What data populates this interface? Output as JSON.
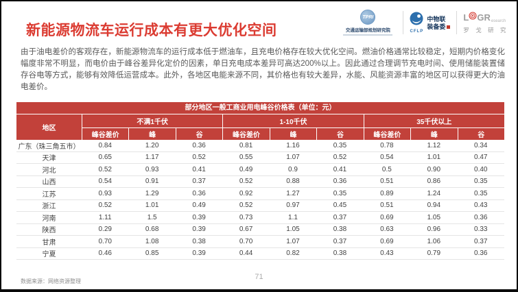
{
  "slide": {
    "title": "新能源物流车运行成本有更大优化空间",
    "body_text": "由于油电差价的客观存在，新能源物流车的运行成本低于燃油车，且充电价格存在较大优化空间。燃油价格通常比较稳定，短期内价格变化幅度非常不明显，而电价由于峰谷差异化定价的因素，单日充电成本差异可高达200%以上。因此通过合理调节充电时间、使用储能装置储存谷电等方式，能够有效降低运营成本。此外，各地区电能来源不同，其价格也有较大差异，水能、风能资源丰富的地区可以获得更大的油电差价。",
    "source_note": "数据来源：网络资源整理",
    "page_number": "71"
  },
  "logos": {
    "tpri": {
      "abbr": "TPRI",
      "name": "交通运输部规划研究院"
    },
    "cflp": {
      "abbr": "CFLP",
      "line1": "中物联",
      "line2": "装备委"
    },
    "logr": {
      "part1": "L",
      "part2": "GR",
      "suffix": "esearch",
      "cn": "罗 戈 研 究"
    }
  },
  "colors": {
    "title_red": "#db3b31",
    "table_red": "#c2413a",
    "logo_blue": "#2c6fad",
    "logr_target_red": "#d2352c"
  },
  "chart_data": {
    "type": "table",
    "title": "部分地区一般工商业用电峰谷价格表（单位：元）",
    "region_column": "地区",
    "column_groups": [
      {
        "label": "不满1千伏",
        "columns": [
          "峰谷差价",
          "峰",
          "谷"
        ]
      },
      {
        "label": "1-10千伏",
        "columns": [
          "峰谷差价",
          "峰",
          "谷"
        ]
      },
      {
        "label": "35千伏以上",
        "columns": [
          "峰谷差价",
          "峰",
          "谷"
        ]
      }
    ],
    "rows": [
      {
        "region": "广东（珠三角五市）",
        "values": [
          "0.84",
          "1.20",
          "0.36",
          "0.81",
          "1.16",
          "0.35",
          "0.78",
          "1.12",
          "0.34"
        ]
      },
      {
        "region": "天津",
        "values": [
          "0.65",
          "1.17",
          "0.52",
          "0.55",
          "1.07",
          "0.52",
          "0.54",
          "1.01",
          "0.47"
        ]
      },
      {
        "region": "河北",
        "values": [
          "0.52",
          "0.93",
          "0.41",
          "0.49",
          "0.9",
          "0.41",
          "0.5",
          "0.90",
          "0.40"
        ]
      },
      {
        "region": "山西",
        "values": [
          "0.54",
          "0.91",
          "0.37",
          "0.52",
          "0.88",
          "0.36",
          "0.51",
          "0.86",
          "0.35"
        ]
      },
      {
        "region": "江苏",
        "values": [
          "0.93",
          "1.29",
          "0.36",
          "0.92",
          "1.27",
          "0.35",
          "0.89",
          "1.24",
          "0.35"
        ]
      },
      {
        "region": "浙江",
        "values": [
          "0.52",
          "1.01",
          "0.49",
          "0.52",
          "0.97",
          "0.45",
          "0.51",
          "0.94",
          "0.43"
        ]
      },
      {
        "region": "河南",
        "values": [
          "1.11",
          "1.5",
          "0.39",
          "0.73",
          "1.1",
          "0.37",
          "0.69",
          "1.05",
          "0.36"
        ]
      },
      {
        "region": "陕西",
        "values": [
          "0.29",
          "0.68",
          "0.39",
          "0.67",
          "1.05",
          "0.38",
          "0.63",
          "0.96",
          "0.33"
        ]
      },
      {
        "region": "甘肃",
        "values": [
          "0.70",
          "1.08",
          "0.38",
          "0.70",
          "1.07",
          "0.37",
          "0.69",
          "1.06",
          "0.37"
        ]
      },
      {
        "region": "宁夏",
        "values": [
          "0.46",
          "0.85",
          "0.39",
          "0.44",
          "0.82",
          "0.38",
          "0.43",
          "0.79",
          "0.36"
        ]
      }
    ]
  }
}
